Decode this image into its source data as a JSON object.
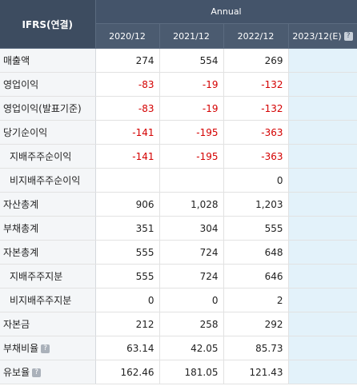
{
  "header": {
    "title": "IFRS(연결)",
    "period_group": "Annual",
    "years": [
      "2020/12",
      "2021/12",
      "2022/12",
      "2023/12(E)"
    ],
    "estimate_info_icon": "help-icon"
  },
  "rows": [
    {
      "label": "매출액",
      "indent": false,
      "info": false,
      "values": [
        "274",
        "554",
        "269",
        ""
      ]
    },
    {
      "label": "영업이익",
      "indent": false,
      "info": false,
      "values": [
        "-83",
        "-19",
        "-132",
        ""
      ]
    },
    {
      "label": "영업이익(발표기준)",
      "indent": false,
      "info": false,
      "values": [
        "-83",
        "-19",
        "-132",
        ""
      ]
    },
    {
      "label": "당기순이익",
      "indent": false,
      "info": false,
      "values": [
        "-141",
        "-195",
        "-363",
        ""
      ]
    },
    {
      "label": "지배주주순이익",
      "indent": true,
      "info": false,
      "values": [
        "-141",
        "-195",
        "-363",
        ""
      ]
    },
    {
      "label": "비지배주주순이익",
      "indent": true,
      "info": false,
      "values": [
        "",
        "",
        "0",
        ""
      ]
    },
    {
      "label": "자산총계",
      "indent": false,
      "info": false,
      "values": [
        "906",
        "1,028",
        "1,203",
        ""
      ]
    },
    {
      "label": "부채총계",
      "indent": false,
      "info": false,
      "values": [
        "351",
        "304",
        "555",
        ""
      ]
    },
    {
      "label": "자본총계",
      "indent": false,
      "info": false,
      "values": [
        "555",
        "724",
        "648",
        ""
      ]
    },
    {
      "label": "지배주주지분",
      "indent": true,
      "info": false,
      "values": [
        "555",
        "724",
        "646",
        ""
      ]
    },
    {
      "label": "비지배주주지분",
      "indent": true,
      "info": false,
      "values": [
        "0",
        "0",
        "2",
        ""
      ]
    },
    {
      "label": "자본금",
      "indent": false,
      "info": false,
      "values": [
        "212",
        "258",
        "292",
        ""
      ]
    },
    {
      "label": "부채비율",
      "indent": false,
      "info": true,
      "values": [
        "63.14",
        "42.05",
        "85.73",
        ""
      ]
    },
    {
      "label": "유보율",
      "indent": false,
      "info": true,
      "values": [
        "162.46",
        "181.05",
        "121.43",
        ""
      ]
    }
  ],
  "colors": {
    "header_bg": "#44546a",
    "negative": "#d40000",
    "estimate_bg": "#e3f2fa",
    "label_bg": "#f4f6f8"
  }
}
